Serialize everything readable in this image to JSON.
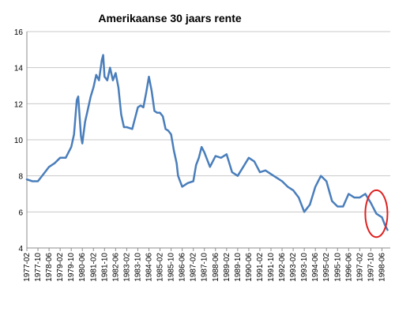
{
  "chart_data": {
    "type": "line",
    "title": "Amerikaanse 30 jaars rente",
    "xlabel": "",
    "ylabel": "",
    "ylim": [
      4,
      16
    ],
    "y_ticks": [
      4,
      6,
      8,
      10,
      12,
      14,
      16
    ],
    "x_tick_labels": [
      "1977-02",
      "1977-10",
      "1978-06",
      "1979-02",
      "1979-10",
      "1980-06",
      "1981-02",
      "1981-10",
      "1982-06",
      "1983-02",
      "1983-10",
      "1984-06",
      "1985-02",
      "1985-10",
      "1986-06",
      "1987-02",
      "1987-10",
      "1988-06",
      "1989-02",
      "1989-10",
      "1990-06",
      "1991-02",
      "1991-10",
      "1992-06",
      "1993-02",
      "1993-10",
      "1994-06",
      "1995-02",
      "1995-10",
      "1996-06",
      "1997-02",
      "1997-10",
      "1998-06"
    ],
    "grid": "horizontal",
    "legend": "none",
    "line_color": "#4a7ebb",
    "annotation": {
      "type": "circle",
      "color": "#e02020",
      "x_range": [
        "1997-06",
        "1998-10"
      ],
      "y_range": [
        4.6,
        7.2
      ]
    },
    "series": [
      {
        "x": [
          "1977-02",
          "1977-06",
          "1977-10",
          "1978-02",
          "1978-06",
          "1978-10",
          "1979-02",
          "1979-06",
          "1979-10",
          "1979-12",
          "1980-02",
          "1980-03",
          "1980-05",
          "1980-06",
          "1980-08",
          "1980-10",
          "1980-12",
          "1981-02",
          "1981-04",
          "1981-06",
          "1981-08",
          "1981-09",
          "1981-10",
          "1981-12",
          "1982-02",
          "1982-04",
          "1982-06",
          "1982-08",
          "1982-10",
          "1982-12",
          "1983-02",
          "1983-06",
          "1983-10",
          "1983-12",
          "1984-02",
          "1984-04",
          "1984-06",
          "1984-08",
          "1984-10",
          "1984-12",
          "1985-02",
          "1985-04",
          "1985-06",
          "1985-08",
          "1985-10",
          "1985-12",
          "1986-02",
          "1986-03",
          "1986-06",
          "1986-08",
          "1986-10",
          "1987-02",
          "1987-04",
          "1987-06",
          "1987-08",
          "1987-10",
          "1987-12",
          "1988-02",
          "1988-06",
          "1988-10",
          "1989-02",
          "1989-06",
          "1989-10",
          "1990-02",
          "1990-06",
          "1990-10",
          "1991-02",
          "1991-06",
          "1991-10",
          "1992-02",
          "1992-06",
          "1992-10",
          "1993-02",
          "1993-06",
          "1993-10",
          "1994-02",
          "1994-06",
          "1994-10",
          "1995-02",
          "1995-06",
          "1995-10",
          "1996-02",
          "1996-06",
          "1996-10",
          "1997-02",
          "1997-06",
          "1997-10",
          "1998-02",
          "1998-06",
          "1998-08",
          "1998-10"
        ],
        "y": [
          7.8,
          7.7,
          7.7,
          8.1,
          8.5,
          8.7,
          9.0,
          9.0,
          9.6,
          10.3,
          12.2,
          12.4,
          10.2,
          9.8,
          11.0,
          11.7,
          12.4,
          12.9,
          13.6,
          13.3,
          14.4,
          14.7,
          13.5,
          13.3,
          14.0,
          13.3,
          13.7,
          12.9,
          11.4,
          10.7,
          10.7,
          10.6,
          11.8,
          11.9,
          11.8,
          12.6,
          13.5,
          12.7,
          11.6,
          11.5,
          11.5,
          11.3,
          10.6,
          10.5,
          10.3,
          9.4,
          8.7,
          8.0,
          7.4,
          7.5,
          7.6,
          7.7,
          8.6,
          9.0,
          9.6,
          9.3,
          8.9,
          8.5,
          9.1,
          9.0,
          9.2,
          8.2,
          8.0,
          8.5,
          9.0,
          8.8,
          8.2,
          8.3,
          8.1,
          7.9,
          7.7,
          7.4,
          7.2,
          6.8,
          6.0,
          6.4,
          7.4,
          8.0,
          7.7,
          6.6,
          6.3,
          6.3,
          7.0,
          6.8,
          6.8,
          7.0,
          6.5,
          5.9,
          5.7,
          5.3,
          5.0
        ]
      }
    ]
  }
}
